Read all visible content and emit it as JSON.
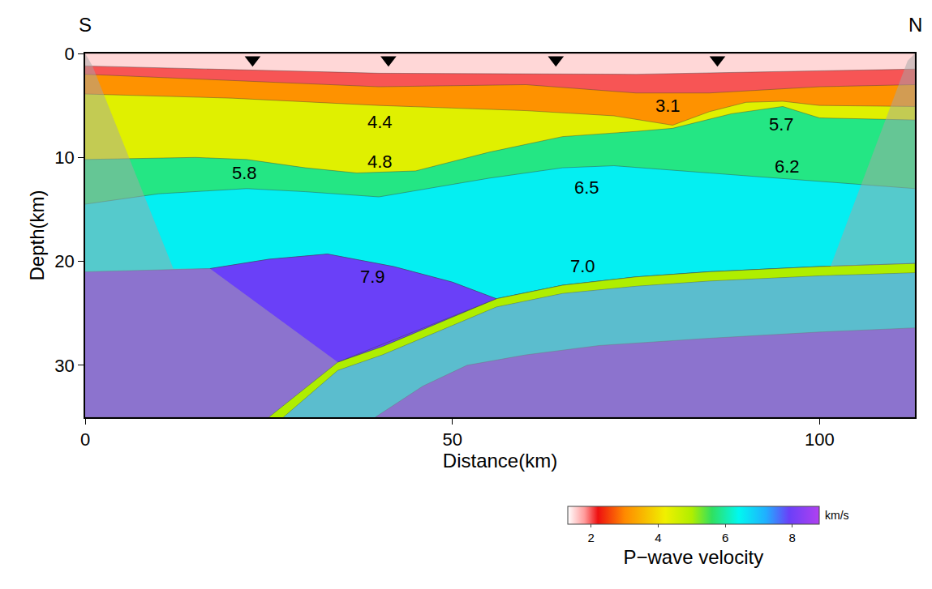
{
  "chart_data": {
    "type": "velocity_section",
    "x_label": "Distance(km)",
    "y_label": "Depth(km)",
    "left_label": "S",
    "right_label": "N",
    "xlim": [
      0,
      113
    ],
    "xticks": [
      0,
      50,
      100
    ],
    "ylim": [
      35,
      0
    ],
    "yticks": [
      0,
      10,
      20,
      30
    ],
    "colorbar": {
      "title": "P−wave velocity",
      "unit": "km/s",
      "range": [
        1.3,
        8.8
      ],
      "ticks": [
        2,
        4,
        6,
        8
      ]
    },
    "layers": [
      {
        "velocity": 8.0,
        "x": [
          0,
          113
        ],
        "base": [
          35,
          35
        ]
      },
      {
        "velocity": 6.5,
        "x": [
          0,
          17,
          25,
          33,
          42,
          50,
          56,
          65,
          75,
          85,
          100,
          113
        ],
        "base": [
          21,
          20.7,
          19.8,
          19.3,
          20.5,
          22,
          23.6,
          22.3,
          21.5,
          21,
          20.5,
          20.2
        ]
      },
      {
        "velocity": 5.8,
        "x": [
          0,
          10,
          22,
          30,
          40,
          55,
          65,
          72,
          85,
          100,
          113
        ],
        "base": [
          14.5,
          13.5,
          13,
          13.3,
          13.8,
          12,
          11,
          10.8,
          11.5,
          12.3,
          13
        ]
      },
      {
        "velocity": 4.4,
        "x": [
          0,
          15,
          22,
          30,
          37,
          45,
          55,
          65,
          75,
          80,
          88,
          95,
          100,
          113
        ],
        "base": [
          10.2,
          10,
          10.2,
          11,
          11.5,
          11.3,
          9.5,
          8,
          7.5,
          7.2,
          5.8,
          5.1,
          6.2,
          6.4
        ]
      },
      {
        "velocity": 3.1,
        "x": [
          0,
          20,
          40,
          60,
          72,
          80,
          85,
          90,
          95,
          100,
          113
        ],
        "base": [
          3.9,
          4.3,
          5,
          5.5,
          6,
          6.9,
          5.6,
          4.7,
          4.6,
          5,
          5.1
        ]
      },
      {
        "velocity": 2.0,
        "x": [
          0,
          20,
          40,
          60,
          75,
          85,
          100,
          113
        ],
        "base": [
          2.0,
          2.6,
          3.2,
          3.0,
          3.8,
          3.8,
          3.2,
          3.0
        ]
      },
      {
        "velocity": 1.5,
        "x": [
          0,
          40,
          75,
          113
        ],
        "base": [
          1.2,
          1.9,
          2.0,
          1.5
        ]
      }
    ],
    "bodies": [
      {
        "velocity": 6.8,
        "x": [
          25,
          34.4,
          40.5,
          48,
          56,
          65,
          75,
          85,
          100,
          113,
          113,
          100,
          85,
          70,
          60,
          52,
          46,
          39.5
        ],
        "y": [
          35,
          29.7,
          28.2,
          26,
          23.6,
          22.3,
          21.5,
          21,
          20.5,
          20.2,
          26.4,
          26.8,
          27.4,
          28.1,
          29,
          30,
          32,
          35
        ]
      },
      {
        "velocity": 5.0,
        "x": [
          25,
          34.4,
          40.5,
          48,
          56,
          65,
          75,
          85,
          100,
          113,
          113,
          100,
          85,
          75,
          65,
          56,
          48,
          40.5,
          34.4,
          27
        ],
        "y": [
          35,
          29.7,
          28.2,
          26,
          23.6,
          22.3,
          21.5,
          21,
          20.5,
          20.2,
          21.1,
          21.4,
          21.9,
          22.4,
          23.1,
          24.4,
          26.8,
          29,
          30.5,
          35
        ]
      },
      {
        "velocity": 7.9,
        "x": [
          17,
          25,
          33,
          42,
          50,
          56,
          34.4
        ],
        "y": [
          20.7,
          19.8,
          19.3,
          20.5,
          22,
          23.6,
          29.7
        ]
      }
    ],
    "masks": [
      {
        "x": [
          0,
          1,
          12,
          17,
          34.4,
          25,
          0
        ],
        "y": [
          0,
          1.2,
          20.7,
          20.7,
          29.7,
          35,
          35
        ]
      },
      {
        "x": [
          27,
          34.4,
          40.5,
          48,
          56,
          65,
          75,
          85,
          100,
          113,
          113
        ],
        "y": [
          35,
          30.5,
          29,
          26.8,
          24.4,
          23.1,
          22.4,
          21.9,
          21.4,
          21.1,
          35
        ]
      },
      {
        "x": [
          113,
          112,
          101.5,
          113
        ],
        "y": [
          0,
          0.7,
          20.5,
          20.2
        ]
      }
    ],
    "stations": {
      "x": [
        22.8,
        41.3,
        64.1,
        86.1
      ],
      "depth": [
        0.6,
        0.6,
        0.6,
        0.6
      ]
    },
    "labels": [
      {
        "text": "4.4",
        "x": 40.2,
        "y": 6.6
      },
      {
        "text": "4.8",
        "x": 40.2,
        "y": 10.4
      },
      {
        "text": "5.8",
        "x": 21.7,
        "y": 11.5
      },
      {
        "text": "3.1",
        "x": 79.4,
        "y": 5.0
      },
      {
        "text": "5.7",
        "x": 94.8,
        "y": 6.8
      },
      {
        "text": "6.2",
        "x": 95.6,
        "y": 10.9
      },
      {
        "text": "6.5",
        "x": 68.3,
        "y": 12.9
      },
      {
        "text": "7.9",
        "x": 39.2,
        "y": 21.5
      },
      {
        "text": "7.0",
        "x": 67.8,
        "y": 20.5
      }
    ]
  }
}
